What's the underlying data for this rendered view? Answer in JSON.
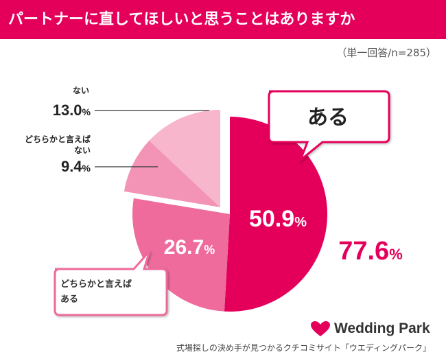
{
  "header": {
    "title": "パートナーに直してほしいと思うことはありますか",
    "subtitle": "（単一回答/n=285）"
  },
  "chart_data": {
    "type": "pie",
    "title": "パートナーに直してほしいと思うことはありますか",
    "unit": "%",
    "slices": [
      {
        "name": "ある",
        "value": 50.9,
        "value_label": "50.9",
        "color": "#e4005a"
      },
      {
        "name": "どちらかと言えばある",
        "value": 26.7,
        "value_label": "26.7",
        "color": "#ee6b9c"
      },
      {
        "name": "どちらかと言えばない",
        "value": 9.4,
        "value_label": "9.4",
        "color": "#f394b7"
      },
      {
        "name": "ない",
        "value": 13.0,
        "value_label": "13.0",
        "color": "#f7b6cc"
      }
    ],
    "combined": {
      "value_label": "77.6",
      "unit": "%",
      "color": "#e4005a"
    },
    "callouts": {
      "aru": "ある",
      "dochiraka_aru_line1": "どちらかと言えば",
      "dochiraka_aru_line2": "ある",
      "dochiraka_nai_line1": "どちらかと言えば",
      "dochiraka_nai_line2": "ない",
      "nai": "ない"
    }
  },
  "brand": {
    "name": "Wedding Park",
    "color": "#e4005a"
  },
  "footer": {
    "text": "式場探しの決め手が見つかるクチコミサイト「ウエディングパーク」"
  }
}
